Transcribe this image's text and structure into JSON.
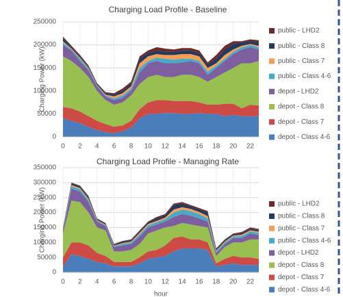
{
  "chart_data": [
    {
      "type": "area",
      "stacked": true,
      "title": "Charging Load Profile - Baseline",
      "y_label": "Charging Power (kW)",
      "x": [
        0,
        1,
        2,
        3,
        4,
        5,
        6,
        7,
        8,
        9,
        10,
        11,
        12,
        13,
        14,
        15,
        16,
        17,
        18,
        19,
        20,
        21,
        22,
        23
      ],
      "xlim": [
        0,
        23
      ],
      "xticks": [
        0,
        2,
        4,
        6,
        8,
        10,
        12,
        14,
        16,
        18,
        20,
        22
      ],
      "ylim": [
        0,
        250000
      ],
      "yticks": [
        0,
        50000,
        100000,
        150000,
        200000,
        250000
      ],
      "grid": true,
      "series": [
        {
          "name": "depot - Class 4-6",
          "color": "#4a7ebb",
          "values": [
            40000,
            35000,
            30000,
            22000,
            15000,
            10000,
            8000,
            12000,
            20000,
            40000,
            50000,
            50000,
            52000,
            52000,
            50000,
            50000,
            52000,
            50000,
            50000,
            45000,
            48000,
            45000,
            45000,
            45000
          ]
        },
        {
          "name": "depot - Class 7",
          "color": "#cd4a45",
          "values": [
            25000,
            27000,
            25000,
            23000,
            20000,
            18000,
            14000,
            13000,
            15000,
            20000,
            25000,
            30000,
            28000,
            26000,
            28000,
            28000,
            23000,
            20000,
            20000,
            27000,
            24000,
            17000,
            25000,
            23000
          ]
        },
        {
          "name": "depot - Class 8",
          "color": "#98bf4f",
          "values": [
            110000,
            103000,
            95000,
            85000,
            65000,
            52000,
            48000,
            50000,
            55000,
            55000,
            55000,
            55000,
            50000,
            52000,
            57000,
            57000,
            55000,
            50000,
            60000,
            68000,
            78000,
            98000,
            90000,
            97000
          ]
        },
        {
          "name": "depot - LHD2",
          "color": "#7d5fa0",
          "values": [
            25000,
            23000,
            15000,
            15000,
            10000,
            8000,
            10000,
            10000,
            10000,
            25000,
            30000,
            30000,
            30000,
            30000,
            27000,
            30000,
            30000,
            15000,
            20000,
            25000,
            30000,
            30000,
            35000,
            25000
          ]
        },
        {
          "name": "public - Class 4-6",
          "color": "#46aac8",
          "values": [
            5000,
            2000,
            5000,
            3000,
            2000,
            2000,
            4000,
            5000,
            5000,
            10000,
            5000,
            7000,
            10000,
            8000,
            8000,
            5000,
            5000,
            7000,
            5000,
            5000,
            5000,
            5000,
            5000,
            5000
          ]
        },
        {
          "name": "public - Class 7",
          "color": "#f59e56",
          "values": [
            3000,
            2000,
            2000,
            2000,
            1000,
            2000,
            4000,
            5000,
            5000,
            10000,
            10000,
            8000,
            8000,
            10000,
            10000,
            10000,
            10000,
            8000,
            5000,
            8000,
            5000,
            3000,
            2000,
            3000
          ]
        },
        {
          "name": "public - Class 8",
          "color": "#23395d",
          "values": [
            7000,
            3000,
            3000,
            2000,
            2000,
            3000,
            4000,
            5000,
            5000,
            10000,
            7000,
            8000,
            7000,
            7000,
            8000,
            8000,
            7000,
            8000,
            10000,
            12000,
            12000,
            7000,
            6000,
            7000
          ]
        },
        {
          "name": "public - LHD2",
          "color": "#6b2b2a",
          "values": [
            3000,
            3000,
            3000,
            3000,
            2000,
            2000,
            3000,
            5000,
            5000,
            5000,
            6000,
            7000,
            7000,
            5000,
            5000,
            5000,
            6000,
            4000,
            8000,
            8000,
            6000,
            3000,
            4000,
            5000
          ]
        }
      ]
    },
    {
      "type": "area",
      "stacked": true,
      "title": "Charging Load Profile - Managing Rate",
      "y_label": "Charging Power (kW)",
      "x_label": "hour",
      "x": [
        0,
        1,
        2,
        3,
        4,
        5,
        6,
        7,
        8,
        9,
        10,
        11,
        12,
        13,
        14,
        15,
        16,
        17,
        18,
        19,
        20,
        21,
        22,
        23
      ],
      "xlim": [
        0,
        23
      ],
      "xticks": [
        0,
        2,
        4,
        6,
        8,
        10,
        12,
        14,
        16,
        18,
        20,
        22
      ],
      "ylim": [
        0,
        350000
      ],
      "yticks": [
        0,
        50000,
        100000,
        150000,
        200000,
        250000,
        300000,
        350000
      ],
      "grid": true,
      "series": [
        {
          "name": "depot - Class 4-6",
          "color": "#4a7ebb",
          "values": [
            20000,
            60000,
            55000,
            45000,
            35000,
            30000,
            20000,
            20000,
            20000,
            30000,
            45000,
            50000,
            55000,
            70000,
            80000,
            80000,
            80000,
            75000,
            20000,
            25000,
            30000,
            25000,
            25000,
            25000
          ]
        },
        {
          "name": "depot - Class 7",
          "color": "#cd4a45",
          "values": [
            30000,
            40000,
            45000,
            45000,
            30000,
            25000,
            15000,
            15000,
            15000,
            20000,
            25000,
            25000,
            35000,
            45000,
            40000,
            30000,
            30000,
            25000,
            10000,
            20000,
            25000,
            25000,
            25000,
            20000
          ]
        },
        {
          "name": "depot - Class 8",
          "color": "#98bf4f",
          "values": [
            80000,
            140000,
            135000,
            110000,
            85000,
            85000,
            35000,
            35000,
            40000,
            45000,
            60000,
            65000,
            60000,
            40000,
            45000,
            50000,
            45000,
            50000,
            25000,
            40000,
            45000,
            50000,
            60000,
            65000
          ]
        },
        {
          "name": "depot - LHD2",
          "color": "#7d5fa0",
          "values": [
            10000,
            40000,
            35000,
            35000,
            20000,
            15000,
            15000,
            20000,
            20000,
            25000,
            20000,
            20000,
            20000,
            30000,
            30000,
            30000,
            25000,
            20000,
            10000,
            10000,
            15000,
            15000,
            20000,
            15000
          ]
        },
        {
          "name": "public - Class 4-6",
          "color": "#46aac8",
          "values": [
            3000,
            8000,
            8000,
            7000,
            3000,
            3000,
            3000,
            5000,
            5000,
            7000,
            7000,
            8000,
            8000,
            15000,
            15000,
            15000,
            15000,
            10000,
            5000,
            5000,
            5000,
            7000,
            7000,
            7000
          ]
        },
        {
          "name": "public - Class 7",
          "color": "#f59e56",
          "values": [
            2000,
            4000,
            4000,
            4000,
            2000,
            2000,
            2000,
            3000,
            3000,
            5000,
            5000,
            4000,
            5000,
            10000,
            8000,
            7000,
            7000,
            8000,
            3000,
            3000,
            3000,
            4000,
            4000,
            4000
          ]
        },
        {
          "name": "public - Class 8",
          "color": "#23395d",
          "values": [
            3000,
            5000,
            5000,
            5000,
            3000,
            3000,
            3000,
            4000,
            4000,
            5000,
            5000,
            8000,
            7000,
            15000,
            12000,
            8000,
            8000,
            12000,
            4000,
            4000,
            4000,
            5000,
            5000,
            5000
          ]
        },
        {
          "name": "public - LHD2",
          "color": "#6b2b2a",
          "values": [
            2000,
            3000,
            3000,
            4000,
            2000,
            2000,
            2000,
            3000,
            3000,
            3000,
            3000,
            5000,
            5000,
            5000,
            5000,
            5000,
            5000,
            5000,
            3000,
            3000,
            3000,
            4000,
            4000,
            4000
          ]
        }
      ]
    }
  ]
}
